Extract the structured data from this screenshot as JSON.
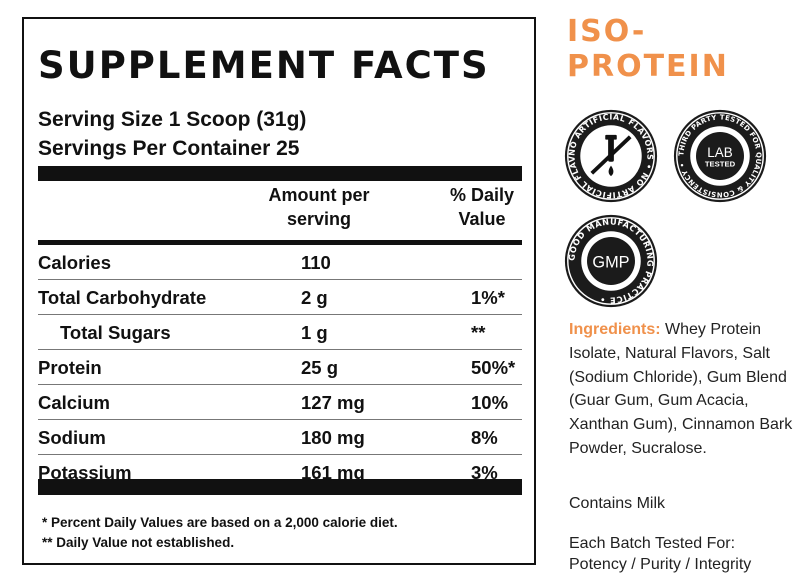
{
  "facts": {
    "title": "SUPPLEMENT FACTS",
    "serving_size": "Serving Size 1 Scoop (31g)",
    "servings_per_container": "Servings Per Container 25",
    "header_amount": "Amount per serving",
    "header_dv": "% Daily Value",
    "rows": [
      {
        "name": "Calories",
        "amount": "110",
        "dv": ""
      },
      {
        "name": "Total Carbohydrate",
        "amount": "2 g",
        "dv": "1%*"
      },
      {
        "name": "Total Sugars",
        "amount": "1 g",
        "dv": "**"
      },
      {
        "name": "Protein",
        "amount": "25 g",
        "dv": "50%*"
      },
      {
        "name": "Calcium",
        "amount": "127 mg",
        "dv": "10%"
      },
      {
        "name": "Sodium",
        "amount": "180 mg",
        "dv": "8%"
      },
      {
        "name": "Potassium",
        "amount": "161 mg",
        "dv": "3%"
      }
    ],
    "footnote_1": "* Percent Daily Values are based on a 2,000 calorie diet.",
    "footnote_2": "** Daily Value not established."
  },
  "side": {
    "title_line1": "ISO-",
    "title_line2": "PROTEIN",
    "badges": [
      {
        "icon": "no-artificial-flavors-icon",
        "ring_text": "NO ARTIFICIAL FLAVORS • NO ARTIFICIAL FLAVORS •"
      },
      {
        "icon": "lab-tested-icon",
        "ring_text": "THIRD PARTY TESTED FOR QUALITY & CONSISTENCY •",
        "center_line1": "LAB",
        "center_line2": "TESTED"
      },
      {
        "icon": "gmp-icon",
        "ring_text": "GOOD MANUFACTURING PRACTICE •",
        "center": "GMP"
      }
    ],
    "ingredients_label": "Ingredients:",
    "ingredients_text": "Whey Protein Isolate, Natural Flavors, Salt (Sodium Chloride), Gum Blend (Guar Gum, Gum Acacia, Xanthan Gum), Cinnamon Bark Powder, Sucralose.",
    "contains": "Contains Milk",
    "tested_line1": "Each Batch Tested For:",
    "tested_line2": "Potency / Purity / Integrity"
  },
  "colors": {
    "accent": "#f0914b",
    "ink": "#111111"
  }
}
